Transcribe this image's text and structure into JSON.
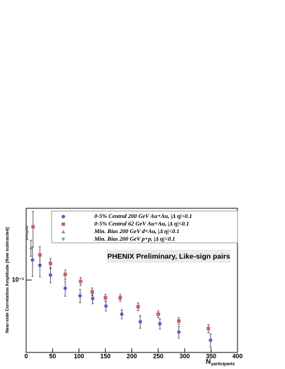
{
  "chart_data": {
    "type": "scatter",
    "ylabel": "Near-side Correlation Amplitude (flow subtracted)",
    "xlabel": "N",
    "xlabel_sub": "participants",
    "annotation": "PHENIX Preliminary, Like-sign pairs",
    "xlim": [
      0,
      400
    ],
    "xticks": [
      0,
      50,
      100,
      150,
      200,
      250,
      300,
      350,
      400
    ],
    "ylim": [
      0.033,
      0.3
    ],
    "log_y": true,
    "yticks": [
      {
        "value": 0.1,
        "label": "10⁻¹"
      }
    ],
    "series": [
      {
        "name": "0-5% Central 200 GeV Au+Au, |Δ η|<0.1",
        "color": "#5c5cd6",
        "marker": "circle",
        "x": [
          12,
          26,
          46,
          74,
          102,
          126,
          151,
          181,
          216,
          253,
          289,
          349
        ],
        "values": [
          0.136,
          0.125,
          0.108,
          0.0882,
          0.0786,
          0.0754,
          0.0672,
          0.0593,
          0.0528,
          0.0512,
          0.0451,
          0.0398
        ],
        "errors": [
          0.03,
          0.02,
          0.012,
          0.01,
          0.008,
          0.006,
          0.005,
          0.004,
          0.005,
          0.004,
          0.004,
          0.004
        ]
      },
      {
        "name": "0-5% Central 62 GeV Au+Au, |Δ η|<0.1",
        "color": "#d05a5a",
        "marker": "square",
        "x": [
          13,
          26,
          46,
          74,
          103,
          125,
          150,
          178,
          212,
          250,
          289,
          345
        ],
        "values": [
          0.226,
          0.147,
          0.129,
          0.109,
          0.098,
          0.0837,
          0.0762,
          0.0762,
          0.0665,
          0.0593,
          0.0534,
          0.0476
        ],
        "errors": [
          0.06,
          0.02,
          0.01,
          0.008,
          0.006,
          0.005,
          0.004,
          0.004,
          0.004,
          0.003,
          0.003,
          0.003
        ]
      },
      {
        "name": "Min. Bias 200 GeV d+Au, |Δ η|<0.1",
        "color": "#8c8c8c",
        "marker": "triangle-up",
        "x": [
          9
        ],
        "values": [
          0.164
        ],
        "errors": [
          0.02
        ]
      },
      {
        "name": "Min. Bias 200 GeV p+p, |Δ η|<0.1",
        "color": "#8c8c8c",
        "marker": "triangle-down",
        "x": [
          2
        ],
        "values": [
          0.206
        ],
        "errors": [
          0.02
        ]
      }
    ]
  }
}
